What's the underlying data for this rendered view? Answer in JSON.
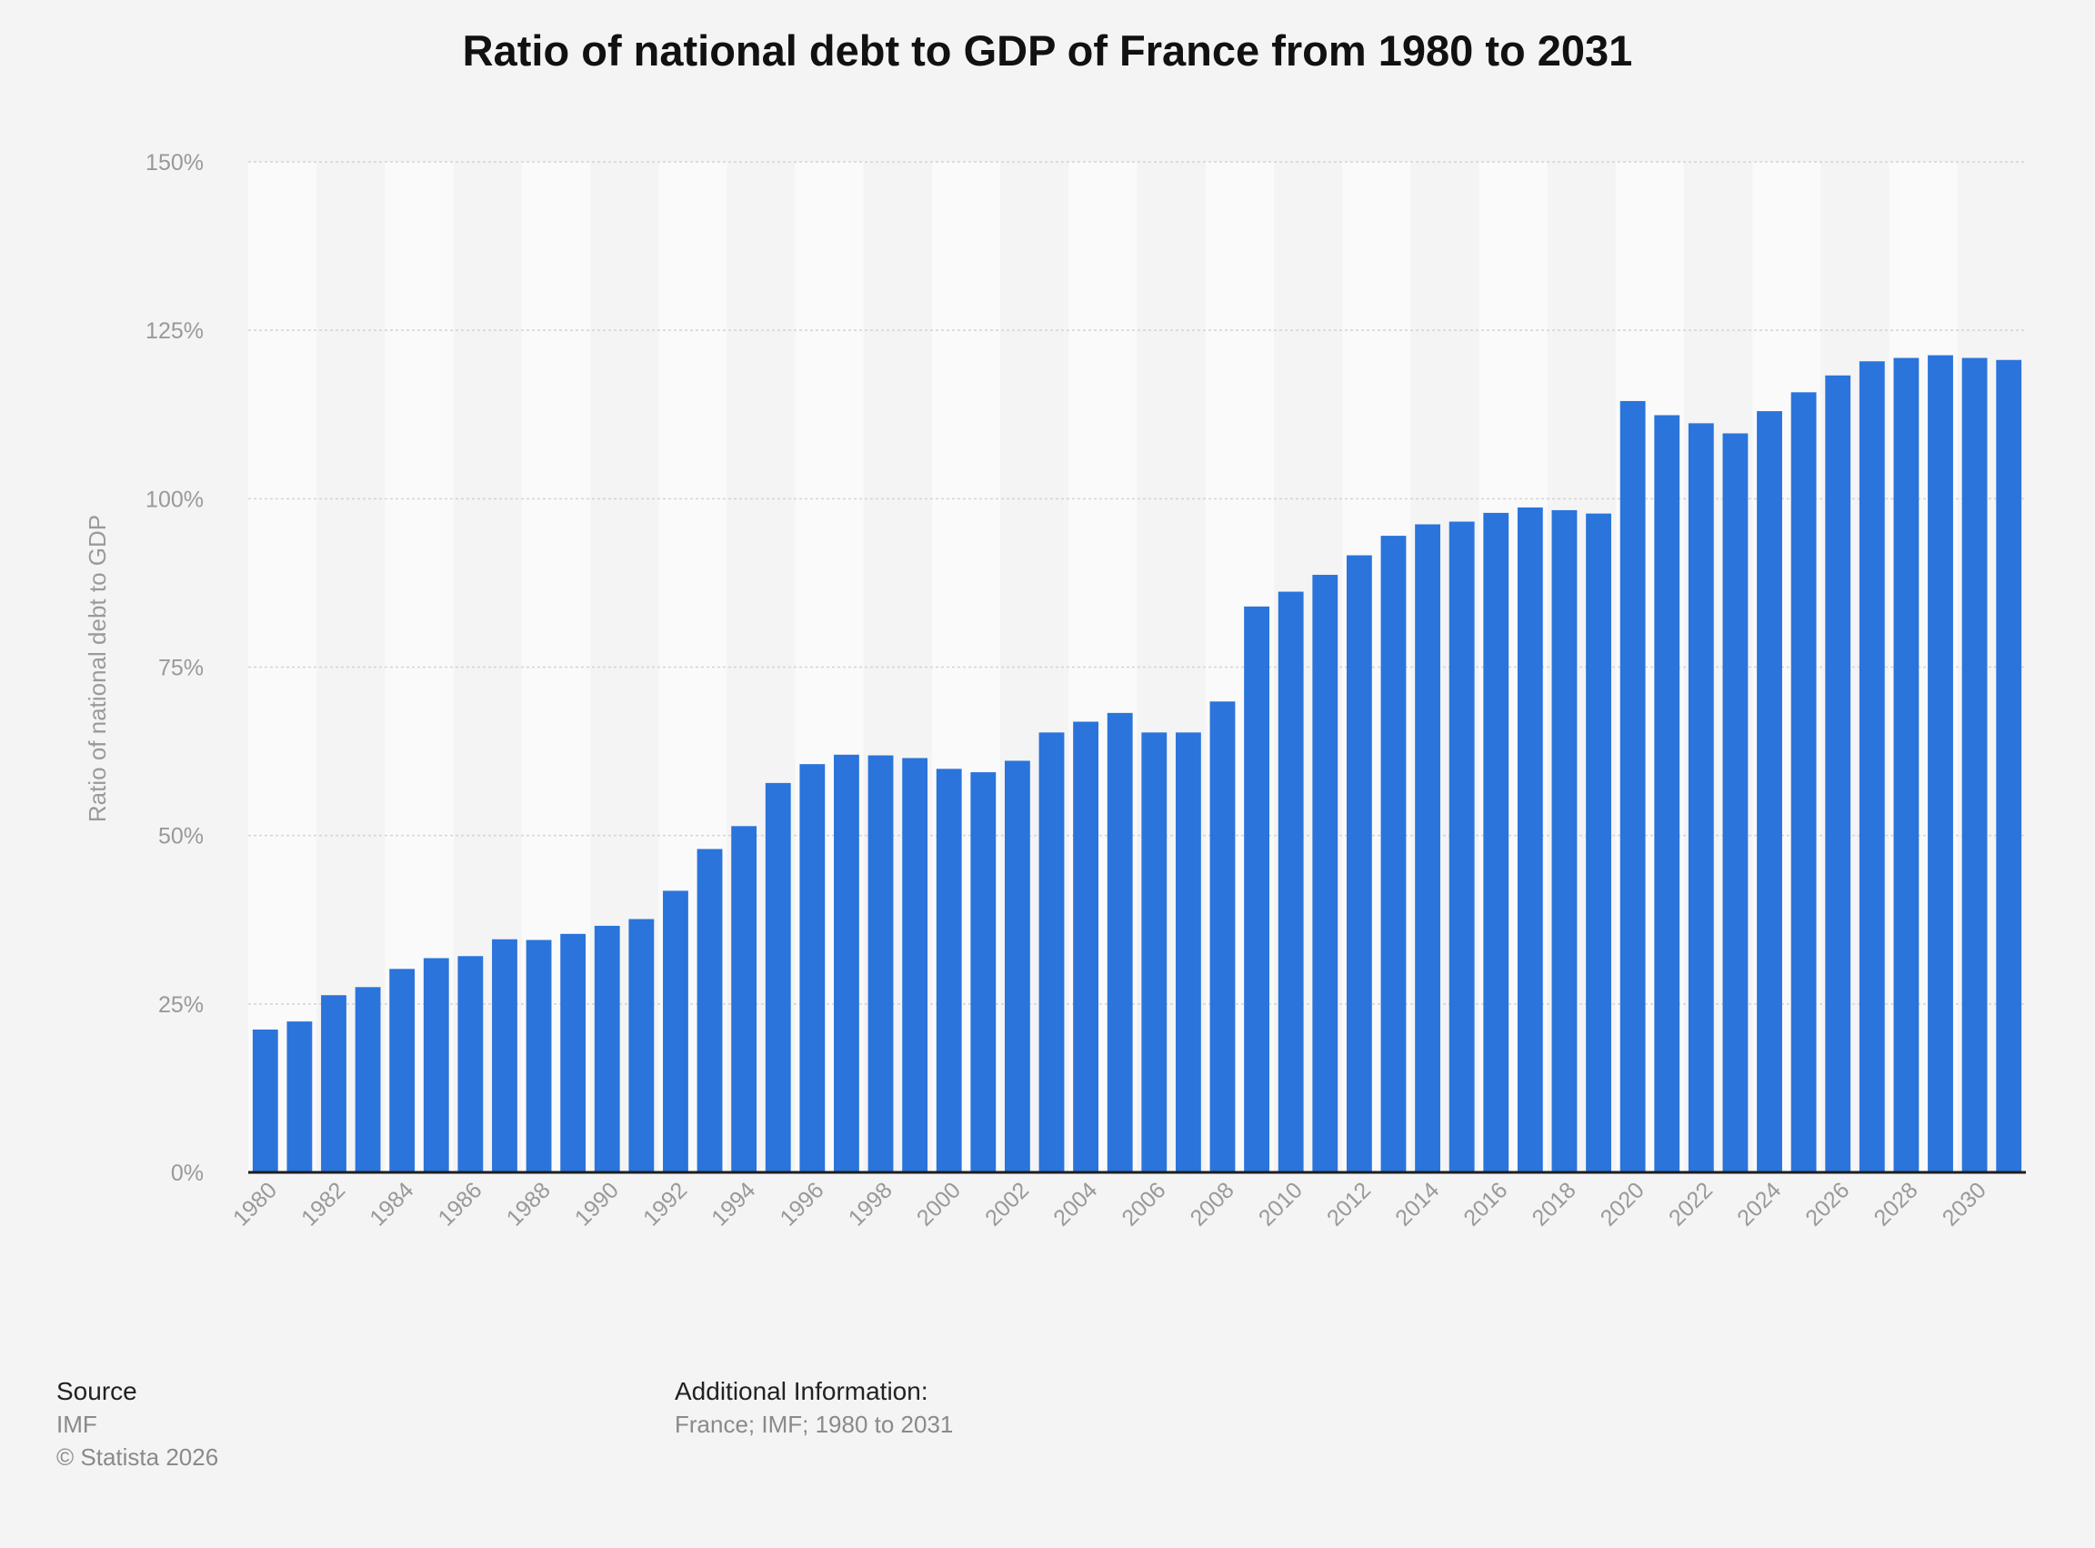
{
  "chart_data": {
    "type": "bar",
    "title": "Ratio of national debt to GDP of France from 1980 to 2031",
    "xlabel": "",
    "ylabel": "Ratio of national debt to GDP",
    "ylim": [
      0,
      150
    ],
    "yticks": [
      "0%",
      "25%",
      "50%",
      "75%",
      "100%",
      "125%",
      "150%"
    ],
    "ytick_values": [
      0,
      25,
      50,
      75,
      100,
      125,
      150
    ],
    "grid": true,
    "bar_color": "#2a74db",
    "categories": [
      "1980",
      "1981",
      "1982",
      "1983",
      "1984",
      "1985",
      "1986",
      "1987",
      "1988",
      "1989",
      "1990",
      "1991",
      "1992",
      "1993",
      "1994",
      "1995",
      "1996",
      "1997",
      "1998",
      "1999",
      "2000",
      "2001",
      "2002",
      "2003",
      "2004",
      "2005",
      "2006",
      "2007",
      "2008",
      "2009",
      "2010",
      "2011",
      "2012",
      "2013",
      "2014",
      "2015",
      "2016",
      "2017",
      "2018",
      "2019",
      "2020",
      "2021",
      "2022",
      "2023",
      "2024",
      "2025",
      "2026",
      "2027",
      "2028",
      "2029",
      "2030",
      "2031"
    ],
    "xtick_labels": [
      "1980",
      "1982",
      "1984",
      "1986",
      "1988",
      "1990",
      "1992",
      "1994",
      "1996",
      "1998",
      "2000",
      "2002",
      "2004",
      "2006",
      "2008",
      "2010",
      "2012",
      "2014",
      "2016",
      "2018",
      "2020",
      "2022",
      "2024",
      "2026",
      "2028",
      "2030"
    ],
    "values": [
      21.2,
      22.4,
      26.3,
      27.5,
      30.2,
      31.8,
      32.1,
      34.6,
      34.5,
      35.4,
      36.6,
      37.6,
      41.8,
      48.0,
      51.4,
      57.8,
      60.6,
      62.0,
      61.9,
      61.5,
      59.9,
      59.4,
      61.1,
      65.3,
      66.9,
      68.2,
      65.3,
      65.3,
      69.9,
      84.0,
      86.2,
      88.7,
      91.6,
      94.5,
      96.2,
      96.6,
      97.9,
      98.7,
      98.3,
      97.8,
      114.5,
      112.4,
      111.2,
      109.7,
      113.0,
      115.8,
      118.3,
      120.4,
      120.9,
      121.3,
      120.9,
      120.6
    ]
  },
  "footer": {
    "source_heading": "Source",
    "source_name": "IMF",
    "copyright": "© Statista 2026",
    "additional_heading": "Additional Information:",
    "additional_text": "France; IMF; 1980 to 2031"
  }
}
